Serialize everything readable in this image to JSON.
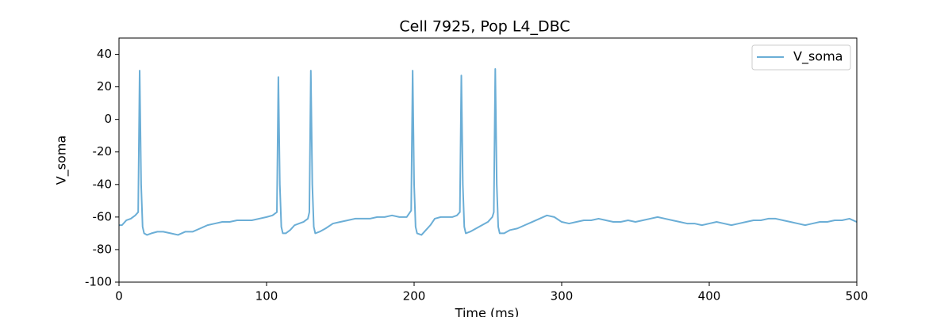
{
  "chart_data": {
    "type": "line",
    "title": "Cell 7925, Pop L4_DBC",
    "xlabel": "Time (ms)",
    "ylabel": "V_soma",
    "xlim": [
      0,
      500
    ],
    "ylim": [
      -100,
      50
    ],
    "xticks": [
      0,
      100,
      200,
      300,
      400,
      500
    ],
    "yticks": [
      -100,
      -80,
      -60,
      -40,
      -20,
      0,
      20,
      40
    ],
    "legend": "upper right",
    "x": [
      0,
      2,
      5,
      8,
      11,
      13,
      14,
      15,
      16,
      17,
      19,
      22,
      26,
      30,
      35,
      40,
      45,
      50,
      55,
      60,
      65,
      70,
      75,
      80,
      85,
      90,
      95,
      100,
      104,
      107,
      108,
      109,
      110,
      111,
      113,
      116,
      119,
      122,
      125,
      128,
      129,
      130,
      131,
      132,
      133,
      136,
      140,
      145,
      150,
      155,
      160,
      165,
      170,
      175,
      180,
      185,
      190,
      195,
      198,
      199,
      200,
      201,
      202,
      205,
      208,
      211,
      214,
      218,
      222,
      226,
      229,
      231,
      232,
      233,
      234,
      235,
      238,
      242,
      246,
      250,
      253,
      254,
      255,
      256,
      257,
      258,
      261,
      265,
      270,
      275,
      280,
      285,
      290,
      295,
      300,
      305,
      310,
      315,
      320,
      325,
      330,
      335,
      340,
      345,
      350,
      355,
      360,
      365,
      370,
      375,
      380,
      385,
      390,
      395,
      400,
      405,
      410,
      415,
      420,
      425,
      430,
      435,
      440,
      445,
      450,
      455,
      460,
      465,
      470,
      475,
      480,
      485,
      490,
      495,
      500
    ],
    "series": [
      {
        "name": "V_soma",
        "color": "#6baed6",
        "values": [
          -65,
          -65,
          -62,
          -61,
          -59,
          -57,
          30,
          -40,
          -66,
          -70,
          -71,
          -70,
          -69,
          -69,
          -70,
          -71,
          -69,
          -69,
          -67,
          -65,
          -64,
          -63,
          -63,
          -62,
          -62,
          -62,
          -61,
          -60,
          -59,
          -57,
          26,
          -40,
          -66,
          -70,
          -70,
          -68,
          -65,
          -64,
          -63,
          -61,
          -57,
          30,
          -40,
          -66,
          -70,
          -69,
          -67,
          -64,
          -63,
          -62,
          -61,
          -61,
          -61,
          -60,
          -60,
          -59,
          -60,
          -60,
          -56,
          30,
          -40,
          -66,
          -70,
          -71,
          -68,
          -65,
          -61,
          -60,
          -60,
          -60,
          -59,
          -57,
          27,
          -40,
          -66,
          -70,
          -69,
          -67,
          -65,
          -63,
          -60,
          -57,
          31,
          -40,
          -66,
          -70,
          -70,
          -68,
          -67,
          -65,
          -63,
          -61,
          -59,
          -60,
          -63,
          -64,
          -63,
          -62,
          -62,
          -61,
          -62,
          -63,
          -63,
          -62,
          -63,
          -62,
          -61,
          -60,
          -61,
          -62,
          -63,
          -64,
          -64,
          -65,
          -64,
          -63,
          -64,
          -65,
          -64,
          -63,
          -62,
          -62,
          -61,
          -61,
          -62,
          -63,
          -64,
          -65,
          -64,
          -63,
          -63,
          -62,
          -62,
          -61,
          -63
        ]
      }
    ]
  }
}
